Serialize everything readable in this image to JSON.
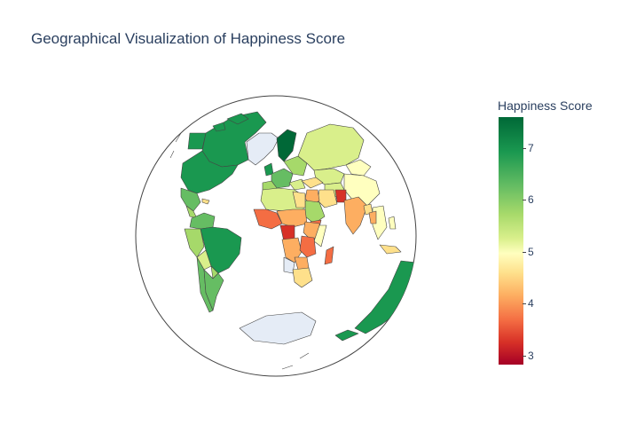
{
  "title": "Geographical Visualization of Happiness Score",
  "colorbar": {
    "title": "Happiness Score",
    "ticks": [
      "7",
      "6",
      "5",
      "4",
      "3"
    ],
    "min": 2.85,
    "max": 7.6,
    "colorscale": [
      "#a50026",
      "#d73027",
      "#f46d43",
      "#fdae61",
      "#fee08b",
      "#ffffbf",
      "#d9ef8b",
      "#a6d96a",
      "#66bd63",
      "#1a9850",
      "#006837"
    ]
  },
  "map": {
    "projection": "orthographic",
    "ocean_color": "#ffffff",
    "no_data_color": "#e5ecf6",
    "border_color": "#444444"
  }
}
